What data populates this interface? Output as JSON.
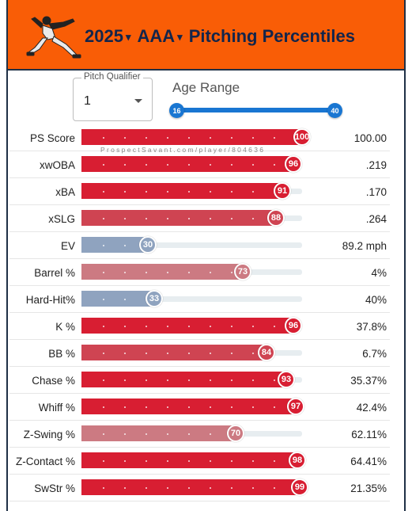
{
  "header": {
    "year": "2025",
    "level": "AAA",
    "title": "Pitching Percentiles",
    "bg_color": "#f95d06",
    "text_color": "#13254b"
  },
  "qualifier": {
    "label": "Pitch Qualifier",
    "value": "1"
  },
  "age_range": {
    "label": "Age Range",
    "min": "16",
    "max": "40"
  },
  "watermark": "ProspectSavant.com/player/804636",
  "colors": {
    "high": "#d81e32",
    "mid_high": "#cf4452",
    "mid": "#cc7a82",
    "low": "#8fa3bf"
  },
  "rows": [
    {
      "label": "PS Score",
      "pct": "100",
      "value": "100.00"
    },
    {
      "label": "xwOBA",
      "pct": "96",
      "value": ".219"
    },
    {
      "label": "xBA",
      "pct": "91",
      "value": ".170"
    },
    {
      "label": "xSLG",
      "pct": "88",
      "value": ".264"
    },
    {
      "label": "EV",
      "pct": "30",
      "value": "89.2 mph"
    },
    {
      "label": "Barrel %",
      "pct": "73",
      "value": "4%"
    },
    {
      "label": "Hard-Hit%",
      "pct": "33",
      "value": "40%"
    },
    {
      "label": "K %",
      "pct": "96",
      "value": "37.8%"
    },
    {
      "label": "BB %",
      "pct": "84",
      "value": "6.7%"
    },
    {
      "label": "Chase %",
      "pct": "93",
      "value": "35.37%"
    },
    {
      "label": "Whiff %",
      "pct": "97",
      "value": "42.4%"
    },
    {
      "label": "Z-Swing %",
      "pct": "70",
      "value": "62.11%"
    },
    {
      "label": "Z-Contact %",
      "pct": "98",
      "value": "64.41%"
    },
    {
      "label": "SwStr %",
      "pct": "99",
      "value": "21.35%"
    }
  ]
}
